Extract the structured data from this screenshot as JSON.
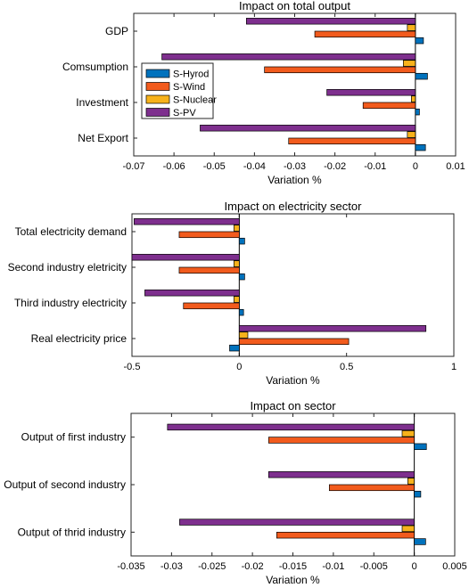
{
  "colors": {
    "S-Hyrod": "#0072BD",
    "S-Wind": "#F25B1D",
    "S-Nuclear": "#F7B21B",
    "S-PV": "#7E2F8E"
  },
  "chart_data": [
    {
      "type": "bar",
      "orientation": "horizontal",
      "title": "Impact on total output",
      "xlabel": "Variation %",
      "categories": [
        "GDP",
        "Comsumption",
        "Investment",
        "Net Export"
      ],
      "series": [
        {
          "name": "S-Hyrod",
          "values": [
            0.002,
            0.003,
            0.001,
            0.0025
          ]
        },
        {
          "name": "S-Wind",
          "values": [
            -0.025,
            -0.0375,
            -0.013,
            -0.0315
          ]
        },
        {
          "name": "S-Nuclear",
          "values": [
            -0.002,
            -0.003,
            -0.001,
            -0.002
          ]
        },
        {
          "name": "S-PV",
          "values": [
            -0.042,
            -0.063,
            -0.022,
            -0.0535
          ]
        }
      ],
      "xlim": [
        -0.07,
        0.01
      ],
      "xticks": [
        "-0.07",
        "-0.06",
        "-0.05",
        "-0.04",
        "-0.03",
        "-0.02",
        "-0.01",
        "0",
        "0.01"
      ],
      "legend": {
        "position": "top-left",
        "entries": [
          "S-Hyrod",
          "S-Wind",
          "S-Nuclear",
          "S-PV"
        ]
      }
    },
    {
      "type": "bar",
      "orientation": "horizontal",
      "title": "Impact on electricity sector",
      "xlabel": "Variation %",
      "categories": [
        "Total electricity demand",
        "Second industry eletricity",
        "Third industry electricity",
        "Real electricity price"
      ],
      "series": [
        {
          "name": "S-Hyrod",
          "values": [
            0.025,
            0.025,
            0.02,
            -0.045
          ]
        },
        {
          "name": "S-Wind",
          "values": [
            -0.28,
            -0.28,
            -0.26,
            0.51
          ]
        },
        {
          "name": "S-Nuclear",
          "values": [
            -0.025,
            -0.025,
            -0.025,
            0.04
          ]
        },
        {
          "name": "S-PV",
          "values": [
            -0.49,
            -0.5,
            -0.44,
            0.87
          ]
        }
      ],
      "xlim": [
        -0.5,
        1
      ],
      "xticks": [
        "-0.5",
        "0",
        "0.5",
        "1"
      ]
    },
    {
      "type": "bar",
      "orientation": "horizontal",
      "title": "Impact on sector",
      "xlabel": "Variation %",
      "categories": [
        "Output of first industry",
        "Output of second industry",
        "Output of thrid industry"
      ],
      "series": [
        {
          "name": "S-Hyrod",
          "values": [
            0.0015,
            0.0008,
            0.0014
          ]
        },
        {
          "name": "S-Wind",
          "values": [
            -0.018,
            -0.0105,
            -0.017
          ]
        },
        {
          "name": "S-Nuclear",
          "values": [
            -0.0015,
            -0.0008,
            -0.0015
          ]
        },
        {
          "name": "S-PV",
          "values": [
            -0.0305,
            -0.018,
            -0.029
          ]
        }
      ],
      "xlim": [
        -0.035,
        0.005
      ],
      "xticks": [
        "-0.035",
        "-0.03",
        "-0.025",
        "-0.02",
        "-0.015",
        "-0.01",
        "-0.005",
        "0",
        "0.005"
      ]
    }
  ]
}
